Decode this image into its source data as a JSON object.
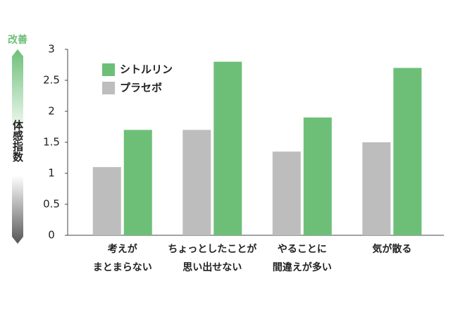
{
  "chart_data": {
    "type": "bar",
    "y_top_label": "改善",
    "y_label": "体感指数",
    "categories": [
      [
        "考えが",
        "まとまらない"
      ],
      [
        "ちょっとしたことが",
        "思い出せない"
      ],
      [
        "やることに",
        "間違えが多い"
      ],
      [
        "気が散る"
      ]
    ],
    "series": [
      {
        "name": "プラセボ",
        "color": "#bdbdbd",
        "values": [
          1.1,
          1.7,
          1.35,
          1.5
        ]
      },
      {
        "name": "シトルリン",
        "color": "#6dbf78",
        "values": [
          1.7,
          2.8,
          1.9,
          2.7
        ]
      }
    ],
    "legend_order": [
      1,
      0
    ],
    "ylim": [
      0,
      3
    ],
    "yticks": [
      0,
      0.5,
      1,
      1.5,
      2,
      2.5,
      3
    ],
    "grid": false
  }
}
